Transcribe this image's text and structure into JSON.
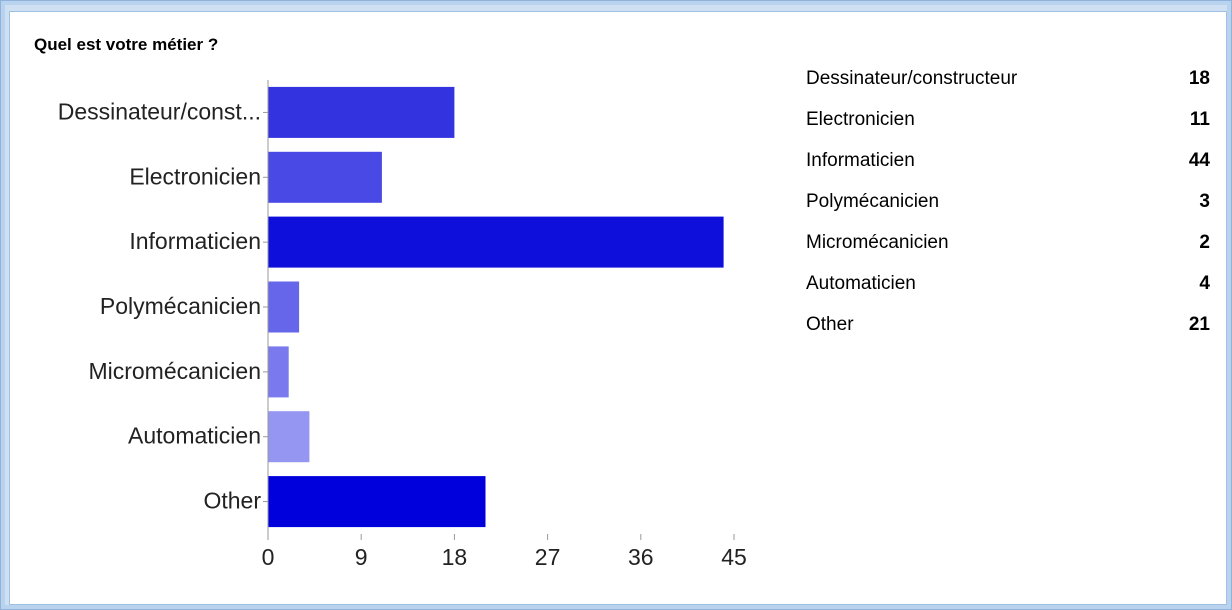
{
  "title": "Quel est votre métier ?",
  "chart_data": {
    "type": "bar",
    "orientation": "horizontal",
    "categories": [
      "Dessinateur/constructeur",
      "Electronicien",
      "Informaticien",
      "Polymécanicien",
      "Micromécanicien",
      "Automaticien",
      "Other"
    ],
    "category_tick_labels": [
      "Dessinateur/const...",
      "Electronicien",
      "Informaticien",
      "Polymécanicien",
      "Micromécanicien",
      "Automaticien",
      "Other"
    ],
    "values": [
      18,
      11,
      44,
      3,
      2,
      4,
      21
    ],
    "xlim": [
      0,
      45
    ],
    "xticks": [
      0,
      9,
      18,
      27,
      36,
      45
    ],
    "grid": false,
    "legend": "none",
    "colors": [
      "#3333e0",
      "#4949e6",
      "#0f0fdc",
      "#6666ea",
      "#7a7aee",
      "#9595f2",
      "#0000dd"
    ]
  },
  "summary": [
    {
      "label": "Dessinateur/constructeur",
      "value": "18"
    },
    {
      "label": "Electronicien",
      "value": "11"
    },
    {
      "label": "Informaticien",
      "value": "44"
    },
    {
      "label": "Polymécanicien",
      "value": "3"
    },
    {
      "label": "Micromécanicien",
      "value": "2"
    },
    {
      "label": "Automaticien",
      "value": "4"
    },
    {
      "label": "Other",
      "value": "21"
    }
  ]
}
